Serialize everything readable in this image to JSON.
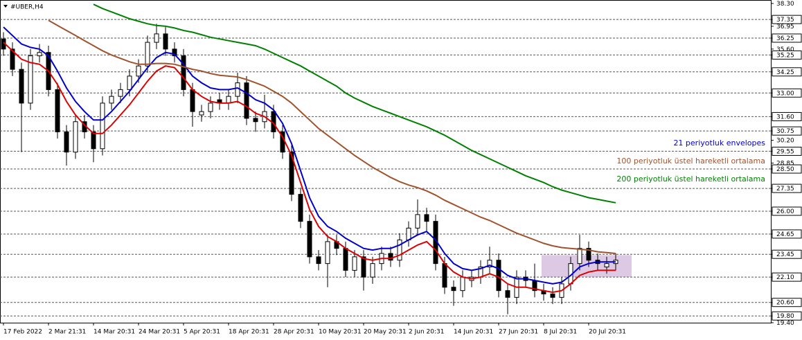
{
  "chart_data": {
    "type": "candlestick",
    "title": "#UBER,H4",
    "x_labels": [
      "17 Feb 2022",
      "2 Mar 21:31",
      "14 Mar 20:31",
      "24 Mar 20:31",
      "5 Apr 20:31",
      "18 Apr 20:31",
      "28 Apr 20:31",
      "10 May 20:31",
      "20 May 20:31",
      "2 Jun 20:31",
      "14 Jun 20:31",
      "27 Jun 20:31",
      "8 Jul 20:31",
      "20 Jul 20:31"
    ],
    "open": [
      36.2,
      35.6,
      34.4,
      32.4,
      35.2,
      35.4,
      33.2,
      30.7,
      29.5,
      31.3,
      30.7,
      29.7,
      32.4,
      32.8,
      33.2,
      34.0,
      34.6,
      36.0,
      36.5,
      35.6,
      35.2,
      33.2,
      31.7,
      31.9,
      32.6,
      32.4,
      32.8,
      33.6,
      31.5,
      31.3,
      31.9,
      30.7,
      29.5,
      27.0,
      25.4,
      23.3,
      22.9,
      24.2,
      23.8,
      22.5,
      23.3,
      22.1,
      22.9,
      23.5,
      23.1,
      24.3,
      25.0,
      25.8,
      25.4,
      22.9,
      21.5,
      21.3,
      21.9,
      22.1,
      22.7,
      23.1,
      21.3,
      20.9,
      22.1,
      21.9,
      21.3,
      21.1,
      20.9,
      21.7,
      22.9,
      23.8,
      23.1,
      22.7,
      22.9
    ],
    "high": [
      36.6,
      36.0,
      34.8,
      35.6,
      35.9,
      35.8,
      33.6,
      31.1,
      31.7,
      31.7,
      31.1,
      32.8,
      33.2,
      33.6,
      34.4,
      35.0,
      36.4,
      37.1,
      36.9,
      36.0,
      35.6,
      33.6,
      32.3,
      32.8,
      33.0,
      33.2,
      34.2,
      34.0,
      31.9,
      32.9,
      32.3,
      31.1,
      29.9,
      27.4,
      25.8,
      23.7,
      24.6,
      24.6,
      24.2,
      23.7,
      23.7,
      23.3,
      23.9,
      23.9,
      24.7,
      25.4,
      26.7,
      26.2,
      25.8,
      23.3,
      21.9,
      22.5,
      22.5,
      23.1,
      23.9,
      23.5,
      21.7,
      22.5,
      22.5,
      22.9,
      21.7,
      21.5,
      22.1,
      23.3,
      24.6,
      24.2,
      23.5,
      23.3,
      23.5
    ],
    "low": [
      35.2,
      34.0,
      29.5,
      32.0,
      34.8,
      32.8,
      30.3,
      28.7,
      29.1,
      30.3,
      28.9,
      29.3,
      32.0,
      32.4,
      32.8,
      33.6,
      34.2,
      35.6,
      35.2,
      34.8,
      32.8,
      31.0,
      31.3,
      31.5,
      32.0,
      32.0,
      32.4,
      31.1,
      30.7,
      30.9,
      30.3,
      29.1,
      26.6,
      25.0,
      22.9,
      22.5,
      21.5,
      23.4,
      22.1,
      22.1,
      21.3,
      21.7,
      22.5,
      22.7,
      22.7,
      23.9,
      24.6,
      24.8,
      22.5,
      21.1,
      20.4,
      20.9,
      21.5,
      21.7,
      22.3,
      20.9,
      19.9,
      20.5,
      21.5,
      20.9,
      20.7,
      20.5,
      20.5,
      21.3,
      22.5,
      22.7,
      22.5,
      22.3,
      22.5
    ],
    "close": [
      35.6,
      34.4,
      32.4,
      35.2,
      35.4,
      33.2,
      30.7,
      29.5,
      31.3,
      30.7,
      29.7,
      32.4,
      32.8,
      33.2,
      34.0,
      34.6,
      36.0,
      36.5,
      35.6,
      35.2,
      33.2,
      31.9,
      31.9,
      32.4,
      32.4,
      32.8,
      33.6,
      31.5,
      31.3,
      31.9,
      30.7,
      29.5,
      27.0,
      25.4,
      23.3,
      22.9,
      24.2,
      23.8,
      22.5,
      23.3,
      22.1,
      22.9,
      23.5,
      23.1,
      24.3,
      25.0,
      25.8,
      25.4,
      22.9,
      21.5,
      21.3,
      22.1,
      22.1,
      22.7,
      23.1,
      21.3,
      20.9,
      22.1,
      21.9,
      21.3,
      21.1,
      20.9,
      21.7,
      22.9,
      23.8,
      23.1,
      22.9,
      22.9,
      23.1
    ],
    "series": [
      {
        "name": "21 periyotluk envelopes",
        "color": "#0000cc",
        "values": [
          36.9,
          36.4,
          35.9,
          35.7,
          35.6,
          35.2,
          34.3,
          33.3,
          32.5,
          31.9,
          31.4,
          31.4,
          31.9,
          32.5,
          33.1,
          33.8,
          34.5,
          35.1,
          35.4,
          35.3,
          34.7,
          34.0,
          33.6,
          33.3,
          33.2,
          33.2,
          33.3,
          33.0,
          32.6,
          32.4,
          32.0,
          31.2,
          30.0,
          28.4,
          26.8,
          25.7,
          25.1,
          24.8,
          24.4,
          24.1,
          23.8,
          23.7,
          23.8,
          23.8,
          24.0,
          24.3,
          24.6,
          24.8,
          24.3,
          23.5,
          22.9,
          22.6,
          22.5,
          22.6,
          22.8,
          22.6,
          22.2,
          22.0,
          22.0,
          21.9,
          21.8,
          21.7,
          21.8,
          22.2,
          22.7,
          22.9,
          23.0,
          23.0,
          23.0
        ],
        "lower_color": "#dd0000",
        "lower": [
          36.0,
          35.5,
          35.0,
          34.8,
          34.7,
          34.3,
          33.5,
          32.5,
          31.7,
          31.1,
          30.6,
          30.6,
          31.1,
          31.7,
          32.3,
          33.0,
          33.7,
          34.3,
          34.6,
          34.5,
          33.9,
          33.2,
          32.8,
          32.5,
          32.4,
          32.4,
          32.5,
          32.2,
          31.8,
          31.6,
          31.2,
          30.4,
          29.3,
          27.7,
          26.1,
          25.1,
          24.5,
          24.2,
          23.8,
          23.5,
          23.2,
          23.1,
          23.2,
          23.2,
          23.4,
          23.7,
          24.0,
          24.2,
          23.7,
          22.9,
          22.4,
          22.1,
          22.0,
          22.1,
          22.3,
          22.1,
          21.7,
          21.5,
          21.5,
          21.4,
          21.3,
          21.2,
          21.3,
          21.7,
          22.2,
          22.4,
          22.5,
          22.5,
          22.5
        ]
      },
      {
        "name": "100 periyotluk üstel hareketli ortalama",
        "color": "#a0522d",
        "values": [
          null,
          null,
          null,
          null,
          null,
          37.3,
          37.0,
          36.7,
          36.4,
          36.1,
          35.8,
          35.5,
          35.25,
          35.05,
          34.85,
          34.7,
          34.7,
          34.75,
          34.75,
          34.7,
          34.55,
          34.4,
          34.3,
          34.15,
          34.05,
          34.0,
          33.95,
          33.8,
          33.6,
          33.4,
          33.1,
          32.8,
          32.4,
          31.9,
          31.4,
          30.9,
          30.5,
          30.1,
          29.7,
          29.3,
          28.95,
          28.6,
          28.3,
          28.0,
          27.75,
          27.55,
          27.4,
          27.2,
          26.95,
          26.65,
          26.4,
          26.15,
          25.9,
          25.65,
          25.45,
          25.2,
          24.95,
          24.7,
          24.5,
          24.3,
          24.1,
          23.95,
          23.85,
          23.8,
          23.75,
          23.7,
          23.6,
          23.55,
          23.5
        ]
      },
      {
        "name": "200 periyotluk üstel hareketli ortalama",
        "color": "#008000",
        "values": [
          null,
          null,
          null,
          null,
          null,
          null,
          null,
          null,
          null,
          null,
          38.25,
          38.0,
          37.8,
          37.6,
          37.4,
          37.25,
          37.1,
          37.0,
          36.95,
          36.85,
          36.7,
          36.6,
          36.45,
          36.3,
          36.2,
          36.1,
          36.0,
          35.9,
          35.8,
          35.6,
          35.35,
          35.1,
          34.85,
          34.6,
          34.3,
          34.0,
          33.7,
          33.4,
          33.0,
          32.7,
          32.45,
          32.2,
          32.0,
          31.8,
          31.6,
          31.4,
          31.2,
          31.0,
          30.75,
          30.5,
          30.2,
          29.9,
          29.6,
          29.35,
          29.1,
          28.85,
          28.6,
          28.35,
          28.1,
          27.9,
          27.7,
          27.45,
          27.25,
          27.1,
          26.95,
          26.8,
          26.7,
          26.6,
          26.5
        ]
      }
    ],
    "ylim": [
      19.4,
      38.3
    ],
    "yticks": [
      {
        "value": 38.3,
        "label": "38.30"
      },
      {
        "value": 37.35,
        "label": "37.35"
      },
      {
        "value": 36.95,
        "label": "36.95"
      },
      {
        "value": 36.25,
        "label": "36.25"
      },
      {
        "value": 35.6,
        "label": "35.60"
      },
      {
        "value": 35.25,
        "label": "35.25"
      },
      {
        "value": 34.25,
        "label": "34.25"
      },
      {
        "value": 33,
        "label": "33.00"
      },
      {
        "value": 31.6,
        "label": "31.60"
      },
      {
        "value": 30.75,
        "label": "30.75"
      },
      {
        "value": 30.2,
        "label": "30.20"
      },
      {
        "value": 29.55,
        "label": "29.55"
      },
      {
        "value": 28.85,
        "label": "28.85"
      },
      {
        "value": 28.5,
        "label": "28.50"
      },
      {
        "value": 27.35,
        "label": "27.35"
      },
      {
        "value": 26,
        "label": "26.00"
      },
      {
        "value": 24.65,
        "label": "24.65"
      },
      {
        "value": 23.45,
        "label": "23.45"
      },
      {
        "value": 22.1,
        "label": "22.10"
      },
      {
        "value": 20.6,
        "label": "20.60"
      },
      {
        "value": 19.8,
        "label": "19.80"
      },
      {
        "value": 19.4,
        "label": "19.40"
      }
    ],
    "levels": [
      37.35,
      36.25,
      35.25,
      34.25,
      33,
      31.6,
      30.75,
      29.55,
      28.5,
      27.35,
      26,
      24.65,
      23.45,
      22.1,
      20.6,
      19.8
    ],
    "zone": {
      "top": 23.4,
      "bottom": 22.1,
      "from": 60,
      "to": 70,
      "color": "#d8c0e0"
    }
  }
}
